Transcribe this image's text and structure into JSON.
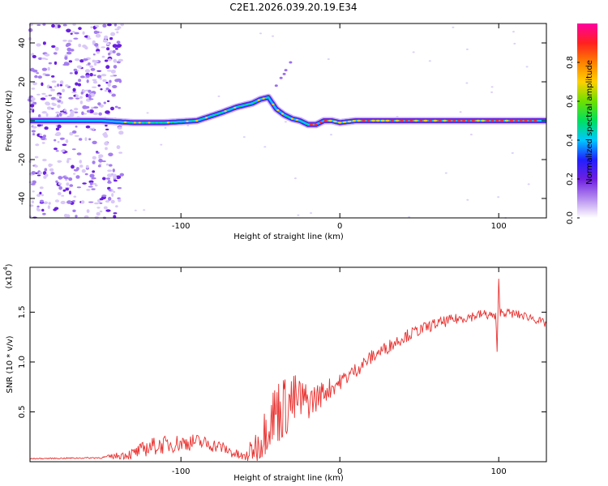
{
  "title": "C2E1.2026.039.20.19.E34",
  "chart_data": [
    {
      "type": "heatmap",
      "name": "spectrogram",
      "xlabel": "Height of straight line (km)",
      "ylabel": "Frequency (Hz)",
      "xlim": [
        -195,
        130
      ],
      "ylim": [
        -50,
        50
      ],
      "xticks": [
        -100,
        0,
        100
      ],
      "yticks": [
        -40,
        -20,
        0,
        20,
        40
      ],
      "grid": false,
      "ridge": {
        "x": [
          -190,
          -150,
          -130,
          -110,
          -90,
          -75,
          -65,
          -55,
          -50,
          -45,
          -40,
          -35,
          -30,
          -25,
          -20,
          -15,
          -10,
          -5,
          0,
          10,
          30,
          60,
          95,
          100,
          130
        ],
        "y": [
          0,
          0,
          -1,
          -1,
          0,
          4,
          7,
          9,
          11,
          12,
          6,
          3,
          1,
          0,
          -2,
          -2,
          0,
          0,
          -1,
          0,
          0,
          0,
          0,
          0,
          0
        ]
      },
      "colorbar": {
        "label": "Normalized spectral amplitude",
        "range": [
          0,
          1
        ],
        "ticks": [
          0.0,
          0.2,
          0.4,
          0.6,
          0.8
        ],
        "colors": [
          "#ffffff",
          "#b58cf0",
          "#6e1fe0",
          "#2020ff",
          "#00c8ff",
          "#00e060",
          "#6ee000",
          "#ffd000",
          "#ff8000",
          "#ff2020",
          "#ff00a0"
        ]
      }
    },
    {
      "type": "line",
      "name": "snr",
      "xlabel": "Height of straight line (km)",
      "ylabel": "SNR (10 * v/v)",
      "yscale_label": "(x10",
      "yscale_exp": "4",
      "xlim": [
        -195,
        130
      ],
      "ylim": [
        0,
        1.95
      ],
      "xticks": [
        -100,
        0,
        100
      ],
      "yticks": [
        0.5,
        1.0,
        1.5
      ],
      "ytick_labels": [
        "0.5",
        "1.0",
        "1.5"
      ],
      "color": "#e8312f",
      "envelope": {
        "x": [
          -195,
          -150,
          -130,
          -120,
          -105,
          -90,
          -75,
          -65,
          -60,
          -55,
          -50,
          -45,
          -40,
          -35,
          -30,
          -25,
          -20,
          -15,
          -10,
          -5,
          0,
          10,
          20,
          30,
          40,
          50,
          60,
          70,
          80,
          90,
          95,
          98,
          99,
          100,
          101,
          103,
          110,
          120,
          130
        ],
        "y": [
          0.03,
          0.04,
          0.08,
          0.15,
          0.18,
          0.2,
          0.15,
          0.07,
          0.04,
          0.12,
          0.2,
          0.4,
          0.5,
          0.55,
          0.6,
          0.62,
          0.6,
          0.64,
          0.7,
          0.75,
          0.8,
          0.92,
          1.05,
          1.15,
          1.25,
          1.32,
          1.38,
          1.42,
          1.45,
          1.48,
          1.47,
          1.45,
          1.1,
          1.8,
          1.5,
          1.5,
          1.48,
          1.45,
          1.38
        ]
      },
      "noise": {
        "x": [
          -195,
          -150,
          -130,
          -120,
          -100,
          -80,
          -60,
          -50,
          -40,
          -30,
          -20,
          -10,
          0,
          50,
          90,
          130
        ],
        "amp": [
          0.005,
          0.008,
          0.06,
          0.09,
          0.09,
          0.07,
          0.05,
          0.2,
          0.35,
          0.3,
          0.18,
          0.12,
          0.08,
          0.06,
          0.05,
          0.04
        ]
      }
    }
  ]
}
